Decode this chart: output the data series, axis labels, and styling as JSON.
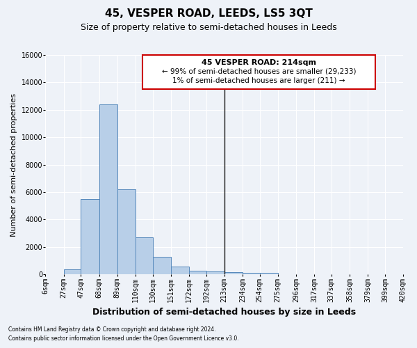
{
  "title": "45, VESPER ROAD, LEEDS, LS5 3QT",
  "subtitle": "Size of property relative to semi-detached houses in Leeds",
  "xlabel": "Distribution of semi-detached houses by size in Leeds",
  "ylabel": "Number of semi-detached properties",
  "footnote1": "Contains HM Land Registry data © Crown copyright and database right 2024.",
  "footnote2": "Contains public sector information licensed under the Open Government Licence v3.0.",
  "bin_labels": [
    "6sqm",
    "27sqm",
    "47sqm",
    "68sqm",
    "89sqm",
    "110sqm",
    "130sqm",
    "151sqm",
    "172sqm",
    "192sqm",
    "213sqm",
    "234sqm",
    "254sqm",
    "275sqm",
    "296sqm",
    "317sqm",
    "337sqm",
    "358sqm",
    "379sqm",
    "399sqm",
    "420sqm"
  ],
  "bin_edges": [
    6,
    27,
    47,
    68,
    89,
    110,
    130,
    151,
    172,
    192,
    213,
    234,
    254,
    275,
    296,
    317,
    337,
    358,
    379,
    399,
    420
  ],
  "bar_heights": [
    0,
    350,
    5500,
    12400,
    6200,
    2700,
    1300,
    550,
    250,
    200,
    150,
    100,
    100,
    0,
    0,
    0,
    0,
    0,
    0,
    0
  ],
  "bar_color": "#b8cfe8",
  "bar_edge_color": "#5588bb",
  "vline_x": 213,
  "vline_color": "#1a1a1a",
  "annotation_title": "45 VESPER ROAD: 214sqm",
  "annotation_line1": "← 99% of semi-detached houses are smaller (29,233)",
  "annotation_line2": "1% of semi-detached houses are larger (211) →",
  "annotation_box_color": "#cc0000",
  "ylim": [
    0,
    16000
  ],
  "yticks": [
    0,
    2000,
    4000,
    6000,
    8000,
    10000,
    12000,
    14000,
    16000
  ],
  "background_color": "#eef2f8",
  "grid_color": "#ffffff",
  "title_fontsize": 11,
  "subtitle_fontsize": 9,
  "ylabel_fontsize": 8,
  "xlabel_fontsize": 9,
  "tick_fontsize": 7,
  "annotation_fontsize": 7.5,
  "footnote_fontsize": 5.5
}
